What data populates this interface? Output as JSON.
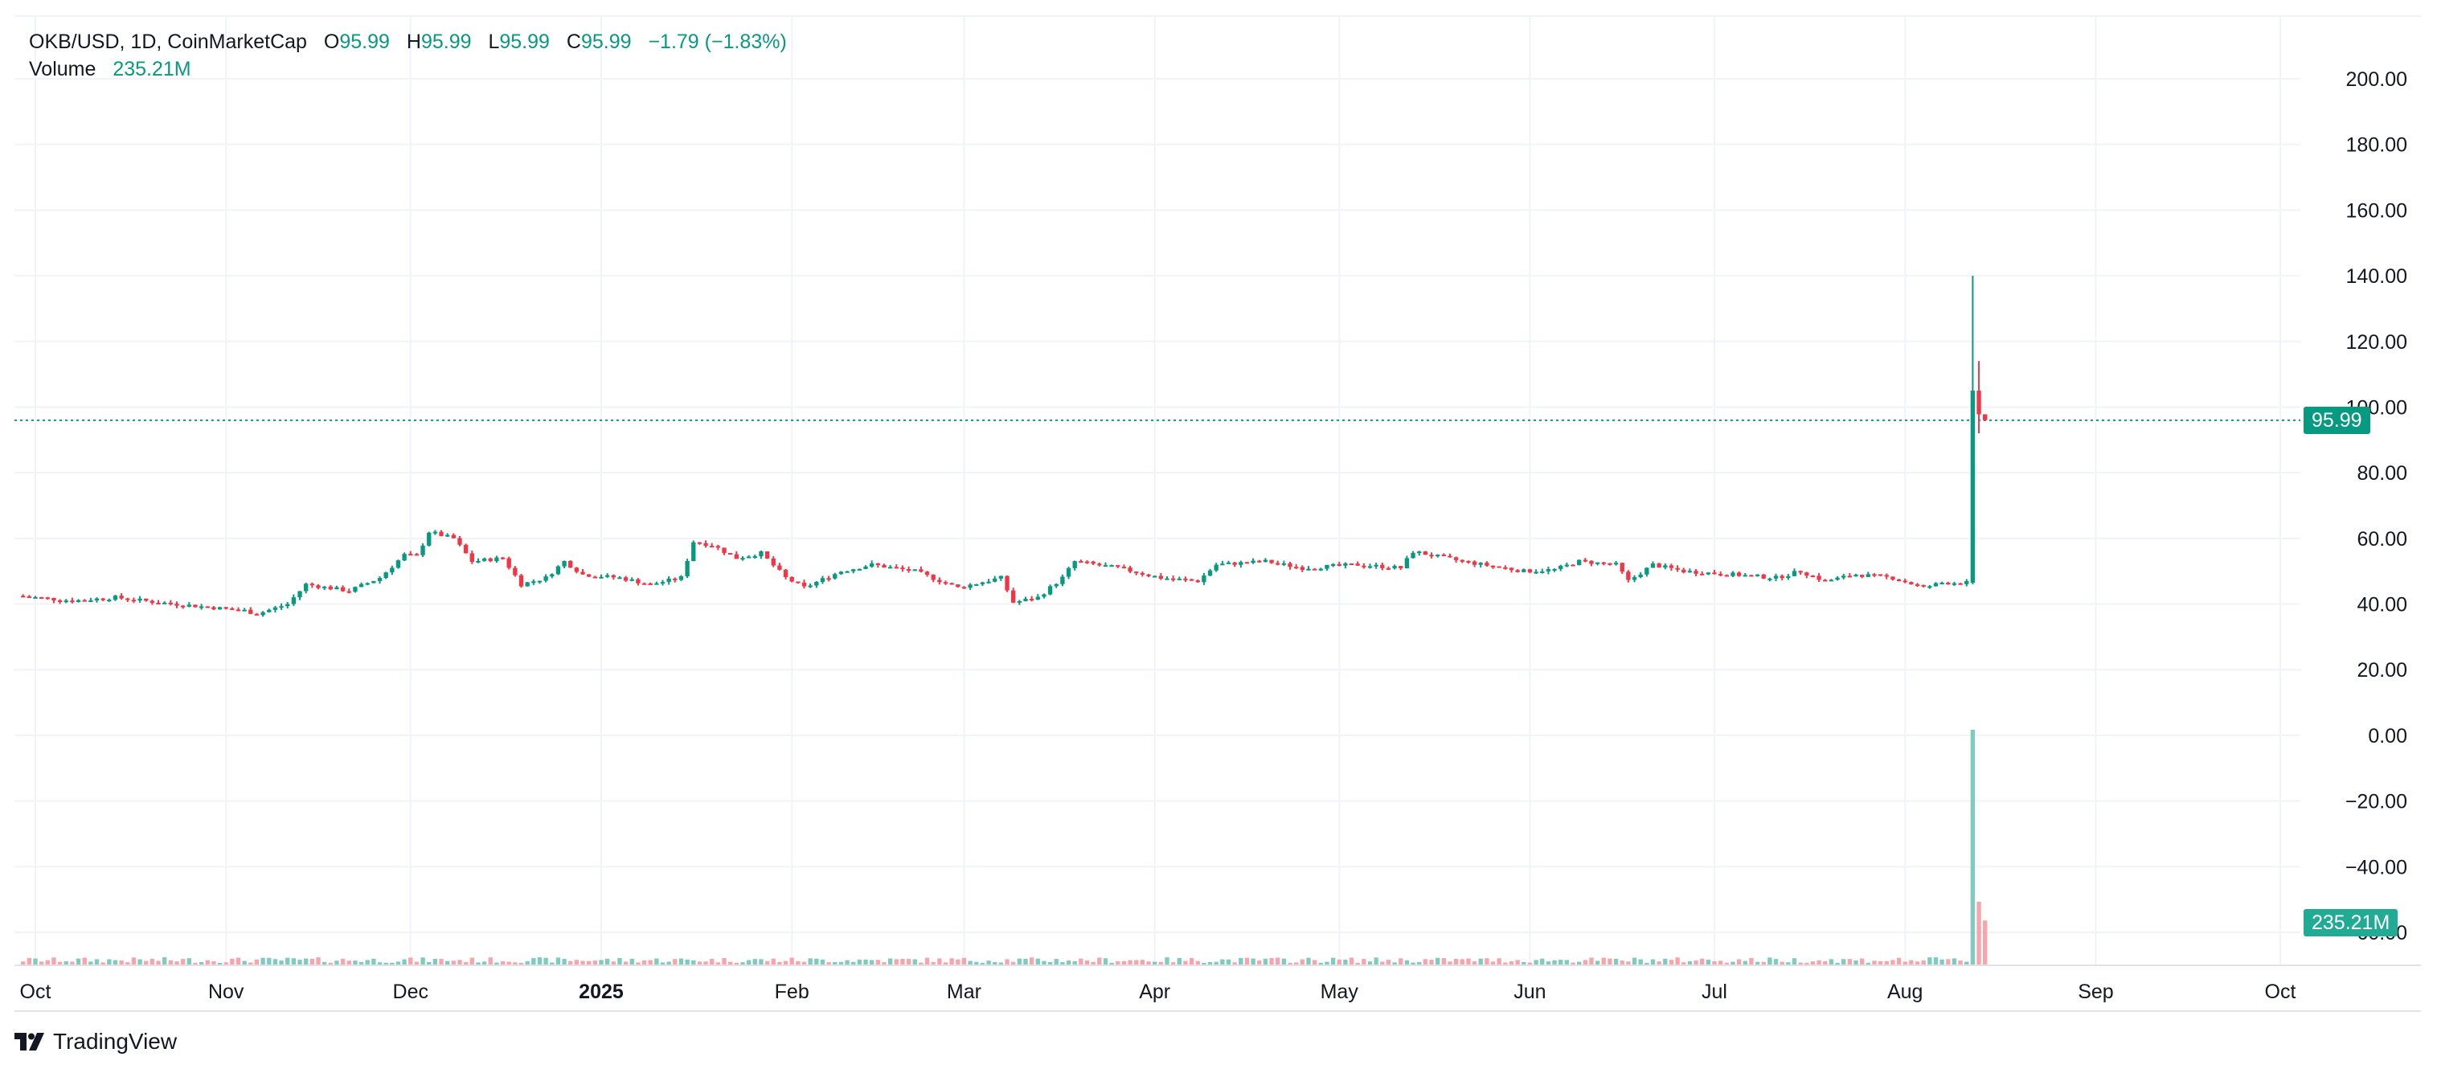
{
  "legend": {
    "symbol": "OKB/USD, 1D, CoinMarketCap",
    "open_label": "O",
    "open": "95.99",
    "high_label": "H",
    "high": "95.99",
    "low_label": "L",
    "low": "95.99",
    "close_label": "C",
    "close": "95.99",
    "change": "−1.79 (−1.83%)",
    "volume_label": "Volume",
    "volume": "235.21M"
  },
  "brand": {
    "name": "TradingView"
  },
  "price_tags": {
    "last_price": "95.99",
    "last_volume": "235.21M"
  },
  "colors": {
    "up": "#089981",
    "down": "#f23645",
    "up_volume": "#7fcbbf",
    "down_volume": "#f7a5ab",
    "grid": "#f0f3fa",
    "text": "#131722"
  },
  "chart_data": {
    "type": "candlestick",
    "title": "OKB/USD, 1D, CoinMarketCap",
    "interval": "1D",
    "grid": true,
    "y_axis": {
      "position": "right",
      "ylim": [
        -65,
        210
      ],
      "ticks": [
        200,
        180,
        160,
        140,
        120,
        100,
        80,
        60,
        40,
        20,
        0,
        -20,
        -40,
        -60
      ],
      "tick_labels": [
        "200.00",
        "180.00",
        "160.00",
        "140.00",
        "120.00",
        "100.00",
        "80.00",
        "60.00",
        "40.00",
        "20.00",
        "0.00",
        "−20.00",
        "−40.00",
        "−60.00"
      ]
    },
    "x_axis": {
      "start": "2024-09-29",
      "end": "2025-10-06",
      "tick_labels": [
        {
          "label": "Oct",
          "date": "2024-10-01",
          "bold": false
        },
        {
          "label": "Nov",
          "date": "2024-11-01",
          "bold": false
        },
        {
          "label": "Dec",
          "date": "2024-12-01",
          "bold": false
        },
        {
          "label": "2025",
          "date": "2025-01-01",
          "bold": true
        },
        {
          "label": "Feb",
          "date": "2025-02-01",
          "bold": false
        },
        {
          "label": "Mar",
          "date": "2025-03-01",
          "bold": false
        },
        {
          "label": "Apr",
          "date": "2025-04-01",
          "bold": false
        },
        {
          "label": "May",
          "date": "2025-05-01",
          "bold": false
        },
        {
          "label": "Jun",
          "date": "2025-06-01",
          "bold": false
        },
        {
          "label": "Jul",
          "date": "2025-07-01",
          "bold": false
        },
        {
          "label": "Aug",
          "date": "2025-08-01",
          "bold": false
        },
        {
          "label": "Sep",
          "date": "2025-09-01",
          "bold": false
        },
        {
          "label": "Oct",
          "date": "2025-10-01",
          "bold": false
        }
      ]
    },
    "last_price_line": 95.99,
    "price_path": [
      [
        "2024-09-29",
        42.5
      ],
      [
        "2024-10-08",
        41.0
      ],
      [
        "2024-10-15",
        42.0
      ],
      [
        "2024-10-22",
        40.5
      ],
      [
        "2024-11-05",
        38.0
      ],
      [
        "2024-11-07",
        37.0
      ],
      [
        "2024-11-12",
        40.0
      ],
      [
        "2024-11-15",
        46.0
      ],
      [
        "2024-11-22",
        44.0
      ],
      [
        "2024-11-27",
        48.0
      ],
      [
        "2024-12-01",
        55.0
      ],
      [
        "2024-12-03",
        54.5
      ],
      [
        "2024-12-05",
        62.0
      ],
      [
        "2024-12-09",
        60.0
      ],
      [
        "2024-12-12",
        53.0
      ],
      [
        "2024-12-17",
        54.0
      ],
      [
        "2024-12-20",
        46.0
      ],
      [
        "2024-12-24",
        48.0
      ],
      [
        "2024-12-27",
        53.0
      ],
      [
        "2024-12-30",
        49.0
      ],
      [
        "2025-01-05",
        48.0
      ],
      [
        "2025-01-10",
        46.0
      ],
      [
        "2025-01-15",
        48.0
      ],
      [
        "2025-01-17",
        59.0
      ],
      [
        "2025-01-20",
        58.0
      ],
      [
        "2025-01-24",
        54.0
      ],
      [
        "2025-01-28",
        55.5
      ],
      [
        "2025-02-01",
        48.0
      ],
      [
        "2025-02-04",
        45.0
      ],
      [
        "2025-02-10",
        50.0
      ],
      [
        "2025-02-15",
        52.0
      ],
      [
        "2025-02-22",
        50.0
      ],
      [
        "2025-03-01",
        45.0
      ],
      [
        "2025-03-08",
        48.0
      ],
      [
        "2025-03-10",
        40.5
      ],
      [
        "2025-03-14",
        42.0
      ],
      [
        "2025-03-18",
        48.0
      ],
      [
        "2025-03-20",
        53.0
      ],
      [
        "2025-03-27",
        51.0
      ],
      [
        "2025-04-03",
        48.0
      ],
      [
        "2025-04-09",
        47.0
      ],
      [
        "2025-04-12",
        52.0
      ],
      [
        "2025-04-20",
        53.0
      ],
      [
        "2025-04-26",
        51.0
      ],
      [
        "2025-05-05",
        52.0
      ],
      [
        "2025-05-12",
        51.0
      ],
      [
        "2025-05-14",
        56.0
      ],
      [
        "2025-05-22",
        53.0
      ],
      [
        "2025-06-01",
        50.0
      ],
      [
        "2025-06-06",
        50.5
      ],
      [
        "2025-06-10",
        53.0
      ],
      [
        "2025-06-16",
        52.0
      ],
      [
        "2025-06-18",
        47.0
      ],
      [
        "2025-06-22",
        52.0
      ],
      [
        "2025-06-27",
        50.0
      ],
      [
        "2025-07-05",
        49.0
      ],
      [
        "2025-07-12",
        48.0
      ],
      [
        "2025-07-16",
        50.0
      ],
      [
        "2025-07-20",
        47.0
      ],
      [
        "2025-07-25",
        49.0
      ],
      [
        "2025-07-31",
        48.0
      ],
      [
        "2025-08-05",
        45.0
      ],
      [
        "2025-08-08",
        46.5
      ],
      [
        "2025-08-11",
        46.5
      ]
    ],
    "spike_candles": [
      {
        "date": "2025-08-12",
        "open": 46.5,
        "high": 140.0,
        "low": 46.0,
        "close": 105.0
      },
      {
        "date": "2025-08-13",
        "open": 105.0,
        "high": 114.0,
        "low": 92.0,
        "close": 97.8
      },
      {
        "date": "2025-08-14",
        "open": 97.8,
        "high": 97.8,
        "low": 95.99,
        "close": 95.99
      }
    ],
    "volume": {
      "label": "Volume",
      "last": "235.21M",
      "spikes": [
        {
          "date": "2025-08-12",
          "relative": 1.0,
          "up": true
        },
        {
          "date": "2025-08-13",
          "relative": 0.27,
          "up": false
        },
        {
          "date": "2025-08-14",
          "relative": 0.19,
          "up": false
        }
      ]
    }
  }
}
